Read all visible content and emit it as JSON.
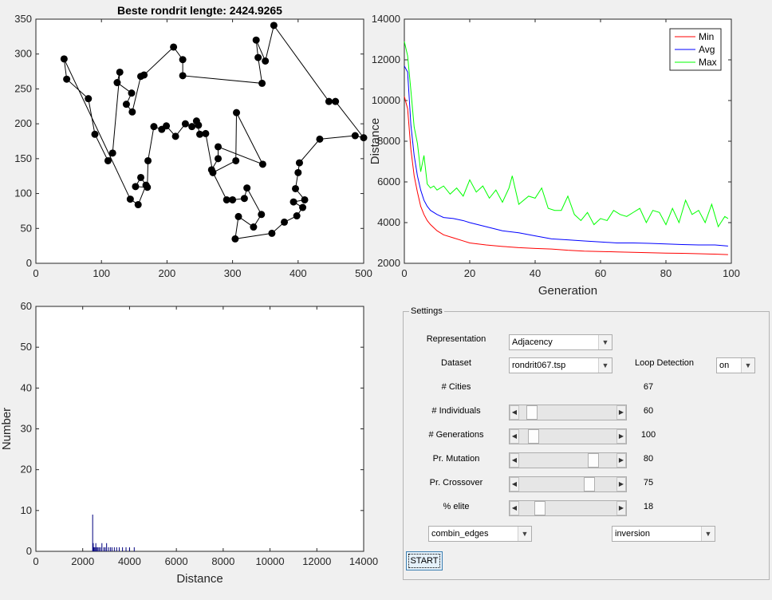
{
  "chart_data": [
    {
      "type": "scatter",
      "title": "Beste rondrit lengte: 2424.9265",
      "xlim": [
        0,
        500
      ],
      "ylim": [
        0,
        350
      ],
      "xticks": [
        0,
        100,
        200,
        300,
        400,
        500
      ],
      "yticks": [
        0,
        50,
        100,
        150,
        200,
        250,
        300,
        350
      ],
      "connected": true,
      "x": [
        43,
        47,
        80,
        90,
        110,
        117,
        128,
        124,
        146,
        138,
        147,
        160,
        165,
        210,
        224,
        224,
        345,
        339,
        336,
        350,
        363,
        447,
        457,
        500,
        487,
        433,
        402,
        400,
        396,
        410,
        393,
        407,
        398,
        379,
        360,
        304,
        309,
        332,
        344,
        322,
        318,
        300,
        291,
        268,
        278,
        278,
        346,
        306,
        305,
        270,
        259,
        250,
        245,
        248,
        238,
        228,
        213,
        199,
        192,
        180,
        171,
        170,
        152,
        160,
        168,
        156,
        144
      ],
      "y": [
        293,
        264,
        236,
        185,
        147,
        158,
        274,
        259,
        244,
        228,
        217,
        268,
        270,
        310,
        292,
        269,
        258,
        295,
        320,
        290,
        341,
        232,
        232,
        180,
        183,
        178,
        144,
        130,
        107,
        91,
        88,
        80,
        68,
        59,
        43,
        35,
        67,
        52,
        70,
        108,
        93,
        91,
        91,
        134,
        150,
        167,
        142,
        216,
        147,
        130,
        186,
        185,
        204,
        198,
        196,
        200,
        182,
        197,
        192,
        196,
        147,
        109,
        110,
        123,
        112,
        84,
        92
      ]
    },
    {
      "type": "line",
      "title": "",
      "xlabel": "Generation",
      "ylabel": "Distance",
      "xlim": [
        0,
        100
      ],
      "ylim": [
        2000,
        14000
      ],
      "xticks": [
        0,
        20,
        40,
        60,
        80,
        100
      ],
      "yticks": [
        2000,
        4000,
        6000,
        8000,
        10000,
        12000,
        14000
      ],
      "legend": "top-right",
      "series": [
        {
          "name": "Min",
          "color": "#ff0000",
          "x": [
            0,
            1,
            2,
            3,
            4,
            5,
            6,
            7,
            8,
            10,
            12,
            15,
            18,
            20,
            25,
            30,
            35,
            40,
            45,
            50,
            55,
            60,
            65,
            70,
            75,
            80,
            85,
            90,
            95,
            99
          ],
          "values": [
            10200,
            9600,
            7600,
            6300,
            5500,
            4800,
            4400,
            4100,
            3900,
            3600,
            3400,
            3250,
            3100,
            3000,
            2900,
            2830,
            2770,
            2730,
            2700,
            2640,
            2600,
            2580,
            2560,
            2540,
            2520,
            2500,
            2490,
            2470,
            2450,
            2425
          ]
        },
        {
          "name": "Avg",
          "color": "#0000ff",
          "x": [
            0,
            1,
            2,
            3,
            4,
            5,
            6,
            7,
            8,
            10,
            12,
            15,
            18,
            20,
            25,
            30,
            35,
            40,
            45,
            50,
            55,
            60,
            65,
            70,
            75,
            80,
            85,
            90,
            95,
            99
          ],
          "values": [
            11700,
            11400,
            8800,
            7300,
            6300,
            5600,
            5100,
            4800,
            4600,
            4400,
            4250,
            4200,
            4100,
            4000,
            3800,
            3600,
            3500,
            3350,
            3200,
            3150,
            3100,
            3050,
            3000,
            3000,
            2980,
            2950,
            2920,
            2900,
            2900,
            2850
          ]
        },
        {
          "name": "Max",
          "color": "#00ff00",
          "x": [
            0,
            1,
            2,
            3,
            4,
            5,
            6,
            7,
            8,
            9,
            10,
            12,
            14,
            16,
            18,
            20,
            22,
            24,
            26,
            28,
            30,
            32,
            33,
            35,
            38,
            40,
            42,
            44,
            46,
            48,
            50,
            52,
            54,
            56,
            58,
            60,
            62,
            64,
            66,
            68,
            70,
            72,
            74,
            76,
            78,
            80,
            82,
            84,
            86,
            88,
            90,
            92,
            94,
            96,
            98,
            99
          ],
          "values": [
            12900,
            12200,
            10500,
            8700,
            7900,
            6500,
            7300,
            5900,
            5700,
            5800,
            5600,
            5800,
            5400,
            5700,
            5300,
            6100,
            5500,
            5800,
            5200,
            5600,
            5000,
            5700,
            6300,
            4900,
            5300,
            5200,
            5700,
            4700,
            4600,
            4600,
            5300,
            4400,
            4100,
            4500,
            3900,
            4200,
            4100,
            4600,
            4400,
            4300,
            4500,
            4700,
            4000,
            4600,
            4500,
            3900,
            4700,
            4000,
            5100,
            4400,
            4600,
            4000,
            4900,
            3800,
            4300,
            4200
          ]
        }
      ]
    },
    {
      "type": "bar",
      "title": "",
      "xlabel": "Distance",
      "ylabel": "Number",
      "xlim": [
        0,
        14000
      ],
      "ylim": [
        0,
        60
      ],
      "xticks": [
        0,
        2000,
        4000,
        6000,
        8000,
        10000,
        12000,
        14000
      ],
      "yticks": [
        0,
        10,
        20,
        30,
        40,
        50,
        60
      ],
      "color": "#00007f",
      "x": [
        2425,
        2450,
        2480,
        2520,
        2560,
        2600,
        2650,
        2700,
        2760,
        2820,
        2900,
        2960,
        3020,
        3100,
        3180,
        3250,
        3350,
        3450,
        3560,
        3700,
        3850,
        4000,
        4200
      ],
      "values": [
        9,
        2,
        1,
        1,
        2,
        1,
        1,
        1,
        1,
        2,
        1,
        1,
        2,
        1,
        1,
        1,
        1,
        1,
        1,
        1,
        1,
        1,
        1
      ]
    }
  ],
  "settings": {
    "title": "Settings",
    "representation_label": "Representation",
    "representation_value": "Adjacency",
    "dataset_label": "Dataset",
    "dataset_value": "rondrit067.tsp",
    "loop_label": "Loop Detection",
    "loop_value": "on",
    "cities_label": "# Cities",
    "cities_value": "67",
    "individuals_label": "# Individuals",
    "individuals_value": "60",
    "individuals_fraction": 0.08,
    "generations_label": "# Generations",
    "generations_value": "100",
    "generations_fraction": 0.1,
    "mutation_label": "Pr. Mutation",
    "mutation_value": "80",
    "mutation_fraction": 0.8,
    "crossover_label": "Pr. Crossover",
    "crossover_value": "75",
    "crossover_fraction": 0.75,
    "elite_label": "% elite",
    "elite_value": "18",
    "elite_fraction": 0.18,
    "crossover_op_value": "combin_edges",
    "mutation_op_value": "inversion",
    "start_label": "START"
  }
}
